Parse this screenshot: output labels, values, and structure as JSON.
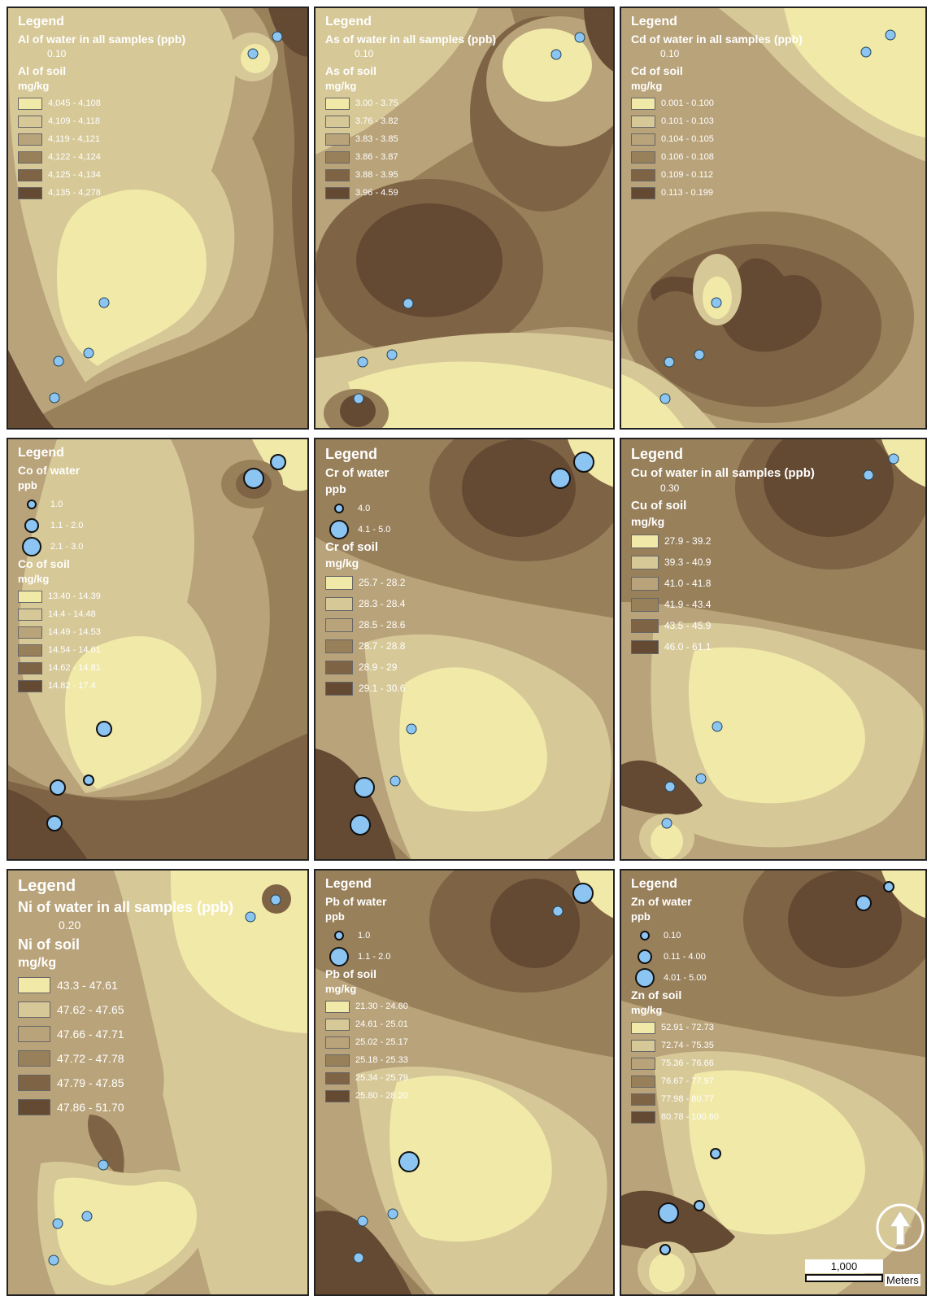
{
  "palette": [
    "#f1e9a8",
    "#d6c897",
    "#b9a37a",
    "#98805b",
    "#7f6345",
    "#654a33"
  ],
  "dot_color": "#8cc4f2",
  "panels": [
    {
      "id": "al",
      "legend_title": "Legend",
      "water_label": "Al of water in all samples (ppb)",
      "water_value": "0.10",
      "soil_label": "Al of soil",
      "unit": "mg/kg",
      "classes": [
        "4,045 - 4,108",
        "4,109 - 4,118",
        "4,119 - 4,121",
        "4,122 - 4,124",
        "4,125 - 4,134",
        "4,135 - 4,278"
      ]
    },
    {
      "id": "as",
      "legend_title": "Legend",
      "water_label": "As of water in all samples (ppb)",
      "water_value": "0.10",
      "soil_label": "As of soil",
      "unit": "mg/kg",
      "classes": [
        "3.00 - 3.75",
        "3.76 - 3.82",
        "3.83 - 3.85",
        "3.86 - 3.87",
        "3.88 - 3.95",
        "3.96 - 4.59"
      ]
    },
    {
      "id": "cd",
      "legend_title": "Legend",
      "water_label": "Cd of water in all samples (ppb)",
      "water_value": "0.10",
      "soil_label": "Cd of soil",
      "unit": "mg/kg",
      "classes": [
        "0.001 - 0.100",
        "0.101 - 0.103",
        "0.104 - 0.105",
        "0.106 - 0.108",
        "0.109 - 0.112",
        "0.113 - 0.199"
      ]
    },
    {
      "id": "co",
      "legend_title": "Legend",
      "water_label": "Co of water",
      "water_unit": "ppb",
      "water_classes": [
        "1.0",
        "1.1 - 2.0",
        "2.1 - 3.0"
      ],
      "soil_label": "Co of soil",
      "unit": "mg/kg",
      "classes": [
        "13.40 - 14.39",
        "14.4 - 14.48",
        "14.49 - 14.53",
        "14.54 - 14.61",
        "14.62 - 14.81",
        "14.82 - 17.4"
      ]
    },
    {
      "id": "cr",
      "legend_title": "Legend",
      "water_label": "Cr of water",
      "water_unit": "ppb",
      "water_classes": [
        "4.0",
        "4.1 - 5.0"
      ],
      "soil_label": "Cr of soil",
      "unit": "mg/kg",
      "classes": [
        "25.7 - 28.2",
        "28.3 - 28.4",
        "28.5 - 28.6",
        "28.7 - 28.8",
        "28.9 - 29",
        "29.1 - 30.6"
      ]
    },
    {
      "id": "cu",
      "legend_title": "Legend",
      "water_label": "Cu of water in all samples (ppb)",
      "water_value": "0.30",
      "soil_label": "Cu of soil",
      "unit": "mg/kg",
      "classes": [
        "27.9 - 39.2",
        "39.3 - 40.9",
        "41.0 - 41.8",
        "41.9 - 43.4",
        "43.5 - 45.9",
        "46.0 - 61.1"
      ]
    },
    {
      "id": "ni",
      "legend_title": "Legend",
      "water_label": "Ni of water in all samples (ppb)",
      "water_value": "0.20",
      "soil_label": "Ni of soil",
      "unit": "mg/kg",
      "classes": [
        "43.3 - 47.61",
        "47.62 - 47.65",
        "47.66 - 47.71",
        "47.72 - 47.78",
        "47.79 - 47.85",
        "47.86 - 51.70"
      ]
    },
    {
      "id": "pb",
      "legend_title": "Legend",
      "water_label": "Pb of water",
      "water_unit": "ppb",
      "water_classes": [
        "1.0",
        "1.1 - 2.0"
      ],
      "soil_label": "Pb of soil",
      "unit": "mg/kg",
      "classes": [
        "21.30 - 24.60",
        "24.61 - 25.01",
        "25.02 - 25.17",
        "25.18 - 25.33",
        "25.34 - 25.79",
        "25.80 - 28.20"
      ]
    },
    {
      "id": "zn",
      "legend_title": "Legend",
      "water_label": "Zn of water",
      "water_unit": "ppb",
      "water_classes": [
        "0.10",
        "0.11 - 4.00",
        "4.01 - 5.00"
      ],
      "soil_label": "Zn of soil",
      "unit": "mg/kg",
      "classes": [
        "52.91 - 72.73",
        "72.74 - 75.35",
        "75.36 - 76.66",
        "76.67 - 77.97",
        "77.98 - 80.77",
        "80.78 - 100.60"
      ]
    }
  ],
  "scale_bar": {
    "value": "1,000",
    "unit": "Meters"
  },
  "north_arrow": "north-arrow-icon"
}
